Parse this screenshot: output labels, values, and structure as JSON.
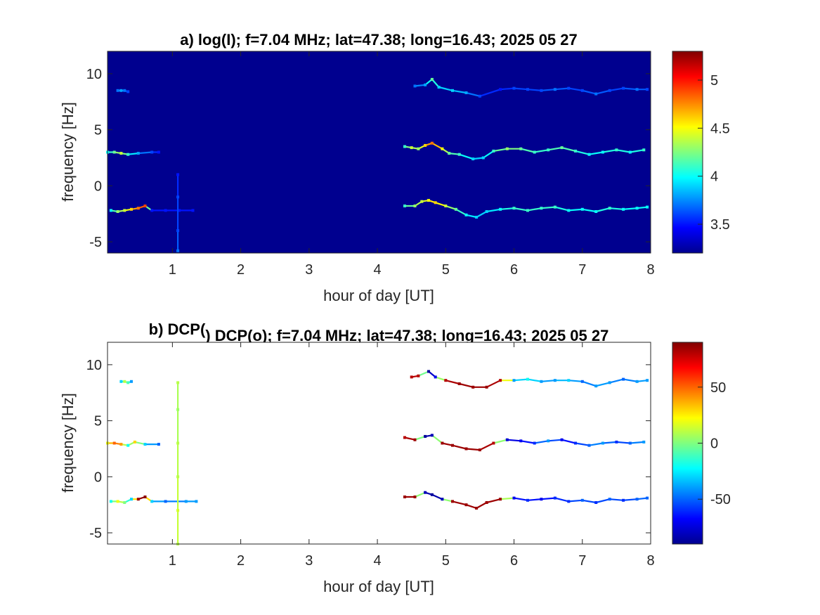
{
  "chart_data": [
    {
      "type": "heatmap",
      "title": "a) log(I); f=7.04 MHz;  lat=47.38; long=16.43; 2025 05 27",
      "xlabel": "hour of day [UT]",
      "ylabel": "frequency [Hz]",
      "xlim": [
        0.05,
        8
      ],
      "ylim": [
        -6,
        12
      ],
      "xticks": [
        1,
        2,
        3,
        4,
        5,
        6,
        7,
        8
      ],
      "yticks": [
        10,
        5,
        0,
        -5
      ],
      "colorbar": {
        "range": [
          3.2,
          5.3
        ],
        "ticks": [
          5,
          4.5,
          4,
          3.5
        ],
        "colormap": "jet"
      },
      "background_value": 3.25,
      "series": [
        {
          "points": [
            [
              0.2,
              8.5,
              3.7
            ],
            [
              0.25,
              8.5,
              3.8
            ],
            [
              0.3,
              8.5,
              3.7
            ],
            [
              0.35,
              8.4,
              3.6
            ],
            [
              4.55,
              8.9,
              3.7
            ],
            [
              4.7,
              9.0,
              3.8
            ],
            [
              4.8,
              9.5,
              4.2
            ],
            [
              4.9,
              8.8,
              3.9
            ],
            [
              5.1,
              8.5,
              3.9
            ],
            [
              5.3,
              8.3,
              3.8
            ],
            [
              5.5,
              8.0,
              3.6
            ],
            [
              5.8,
              8.6,
              3.5
            ],
            [
              6.0,
              8.7,
              3.6
            ],
            [
              6.2,
              8.6,
              3.6
            ],
            [
              6.4,
              8.5,
              3.6
            ],
            [
              6.6,
              8.6,
              3.7
            ],
            [
              6.8,
              8.7,
              3.6
            ],
            [
              7.0,
              8.5,
              3.6
            ],
            [
              7.2,
              8.2,
              3.7
            ],
            [
              7.4,
              8.5,
              3.6
            ],
            [
              7.6,
              8.7,
              3.6
            ],
            [
              7.8,
              8.6,
              3.7
            ],
            [
              7.95,
              8.6,
              3.6
            ]
          ]
        },
        {
          "points": [
            [
              0.05,
              3.0,
              4.0
            ],
            [
              0.15,
              3.0,
              4.2
            ],
            [
              0.25,
              2.9,
              4.4
            ],
            [
              0.35,
              2.8,
              4.1
            ],
            [
              0.5,
              2.9,
              3.8
            ],
            [
              0.7,
              3.0,
              3.6
            ],
            [
              0.8,
              3.0,
              3.5
            ],
            [
              4.4,
              3.5,
              4.1
            ],
            [
              4.5,
              3.4,
              4.4
            ],
            [
              4.6,
              3.3,
              4.3
            ],
            [
              4.7,
              3.6,
              4.6
            ],
            [
              4.8,
              3.8,
              4.8
            ],
            [
              4.95,
              3.3,
              4.5
            ],
            [
              5.05,
              2.9,
              4.2
            ],
            [
              5.2,
              2.8,
              4.1
            ],
            [
              5.4,
              2.4,
              3.9
            ],
            [
              5.55,
              2.5,
              3.9
            ],
            [
              5.7,
              3.1,
              4.1
            ],
            [
              5.9,
              3.3,
              4.3
            ],
            [
              6.1,
              3.3,
              4.2
            ],
            [
              6.3,
              3.0,
              4.1
            ],
            [
              6.5,
              3.2,
              4.1
            ],
            [
              6.7,
              3.4,
              4.2
            ],
            [
              6.9,
              3.1,
              4.1
            ],
            [
              7.1,
              2.8,
              4.0
            ],
            [
              7.3,
              3.0,
              4.0
            ],
            [
              7.5,
              3.2,
              4.1
            ],
            [
              7.7,
              3.0,
              4.0
            ],
            [
              7.9,
              3.2,
              4.1
            ]
          ]
        },
        {
          "points": [
            [
              0.1,
              -2.2,
              4.0
            ],
            [
              0.2,
              -2.3,
              4.3
            ],
            [
              0.3,
              -2.2,
              4.4
            ],
            [
              0.4,
              -2.1,
              4.6
            ],
            [
              0.5,
              -2.0,
              4.8
            ],
            [
              0.6,
              -1.8,
              4.9
            ],
            [
              0.7,
              -2.2,
              3.5
            ],
            [
              0.9,
              -2.2,
              3.5
            ],
            [
              1.1,
              -2.2,
              3.5
            ],
            [
              1.3,
              -2.2,
              3.5
            ],
            [
              4.4,
              -1.8,
              4.1
            ],
            [
              4.55,
              -1.8,
              4.3
            ],
            [
              4.65,
              -1.4,
              4.4
            ],
            [
              4.75,
              -1.3,
              4.5
            ],
            [
              4.85,
              -1.5,
              4.6
            ],
            [
              5.0,
              -1.8,
              4.4
            ],
            [
              5.15,
              -2.1,
              4.2
            ],
            [
              5.3,
              -2.6,
              4.0
            ],
            [
              5.45,
              -2.8,
              3.9
            ],
            [
              5.6,
              -2.3,
              3.9
            ],
            [
              5.8,
              -2.1,
              4.0
            ],
            [
              6.0,
              -2.0,
              4.1
            ],
            [
              6.2,
              -2.2,
              4.1
            ],
            [
              6.4,
              -2.0,
              4.1
            ],
            [
              6.6,
              -1.9,
              4.1
            ],
            [
              6.8,
              -2.2,
              4.0
            ],
            [
              7.0,
              -2.1,
              4.0
            ],
            [
              7.2,
              -2.3,
              4.0
            ],
            [
              7.4,
              -2.0,
              4.1
            ],
            [
              7.6,
              -2.1,
              4.0
            ],
            [
              7.8,
              -2.0,
              4.0
            ],
            [
              7.95,
              -1.9,
              4.0
            ]
          ]
        },
        {
          "points": [
            [
              1.08,
              -5.8,
              3.7
            ],
            [
              1.08,
              -4.0,
              3.6
            ],
            [
              1.08,
              -1.0,
              3.6
            ],
            [
              1.08,
              1.0,
              3.5
            ]
          ]
        }
      ]
    },
    {
      "type": "heatmap",
      "title": "b) DCP(o); f=7.04 MHz;  lat=47.38; long=16.43; 2025 05 27",
      "xlabel": "hour of day [UT]",
      "ylabel": "frequency [Hz]",
      "xlim": [
        0.05,
        8
      ],
      "ylim": [
        -6,
        12
      ],
      "xticks": [
        1,
        2,
        3,
        4,
        5,
        6,
        7,
        8
      ],
      "yticks": [
        10,
        5,
        0,
        -5
      ],
      "colorbar": {
        "range": [
          -90,
          90
        ],
        "ticks": [
          50,
          0,
          -50
        ],
        "colormap": "jet"
      },
      "series": [
        {
          "points": [
            [
              0.25,
              8.5,
              -30
            ],
            [
              0.3,
              8.5,
              10
            ],
            [
              0.35,
              8.4,
              -10
            ],
            [
              0.4,
              8.5,
              -40
            ],
            [
              4.5,
              8.9,
              80
            ],
            [
              4.6,
              9.0,
              80
            ],
            [
              4.75,
              9.4,
              -85
            ],
            [
              4.85,
              8.9,
              -70
            ],
            [
              5.0,
              8.6,
              80
            ],
            [
              5.2,
              8.3,
              85
            ],
            [
              5.4,
              8.0,
              85
            ],
            [
              5.6,
              8.0,
              85
            ],
            [
              5.8,
              8.6,
              80
            ],
            [
              6.0,
              8.6,
              -40
            ],
            [
              6.2,
              8.7,
              -20
            ],
            [
              6.4,
              8.5,
              -40
            ],
            [
              6.6,
              8.6,
              -40
            ],
            [
              6.8,
              8.6,
              -30
            ],
            [
              7.0,
              8.5,
              -50
            ],
            [
              7.2,
              8.1,
              -40
            ],
            [
              7.4,
              8.4,
              -40
            ],
            [
              7.6,
              8.7,
              -50
            ],
            [
              7.8,
              8.5,
              -40
            ],
            [
              7.95,
              8.6,
              -40
            ]
          ]
        },
        {
          "points": [
            [
              0.05,
              3.0,
              20
            ],
            [
              0.15,
              3.0,
              50
            ],
            [
              0.25,
              2.9,
              40
            ],
            [
              0.35,
              2.8,
              -20
            ],
            [
              0.45,
              3.1,
              30
            ],
            [
              0.6,
              2.9,
              -30
            ],
            [
              0.8,
              2.9,
              -50
            ],
            [
              4.4,
              3.5,
              80
            ],
            [
              4.55,
              3.3,
              85
            ],
            [
              4.7,
              3.6,
              -85
            ],
            [
              4.8,
              3.7,
              -80
            ],
            [
              4.95,
              3.0,
              85
            ],
            [
              5.1,
              2.8,
              85
            ],
            [
              5.3,
              2.5,
              85
            ],
            [
              5.5,
              2.4,
              85
            ],
            [
              5.7,
              3.0,
              80
            ],
            [
              5.9,
              3.3,
              -75
            ],
            [
              6.1,
              3.2,
              -70
            ],
            [
              6.3,
              3.0,
              -60
            ],
            [
              6.5,
              3.2,
              -40
            ],
            [
              6.7,
              3.3,
              -70
            ],
            [
              6.9,
              3.0,
              -60
            ],
            [
              7.1,
              2.8,
              -50
            ],
            [
              7.3,
              3.0,
              -40
            ],
            [
              7.5,
              3.1,
              -60
            ],
            [
              7.7,
              3.0,
              -50
            ],
            [
              7.9,
              3.1,
              -40
            ]
          ]
        },
        {
          "points": [
            [
              0.1,
              -2.2,
              -20
            ],
            [
              0.2,
              -2.2,
              20
            ],
            [
              0.3,
              -2.3,
              0
            ],
            [
              0.4,
              -2.0,
              -30
            ],
            [
              0.5,
              -2.0,
              85
            ],
            [
              0.6,
              -1.8,
              88
            ],
            [
              0.7,
              -2.2,
              -30
            ],
            [
              0.9,
              -2.2,
              -50
            ],
            [
              1.2,
              -2.2,
              -40
            ],
            [
              1.35,
              -2.2,
              -40
            ],
            [
              4.4,
              -1.8,
              85
            ],
            [
              4.55,
              -1.8,
              85
            ],
            [
              4.7,
              -1.4,
              -80
            ],
            [
              4.8,
              -1.6,
              -85
            ],
            [
              4.95,
              -2.0,
              -80
            ],
            [
              5.1,
              -2.2,
              85
            ],
            [
              5.3,
              -2.5,
              85
            ],
            [
              5.45,
              -2.8,
              85
            ],
            [
              5.6,
              -2.3,
              85
            ],
            [
              5.8,
              -2.0,
              85
            ],
            [
              6.0,
              -1.9,
              -70
            ],
            [
              6.2,
              -2.1,
              -60
            ],
            [
              6.4,
              -2.0,
              -70
            ],
            [
              6.6,
              -1.9,
              -60
            ],
            [
              6.8,
              -2.2,
              -60
            ],
            [
              7.0,
              -2.1,
              -50
            ],
            [
              7.2,
              -2.3,
              -60
            ],
            [
              7.4,
              -2.0,
              -50
            ],
            [
              7.6,
              -2.1,
              -60
            ],
            [
              7.8,
              -2.0,
              -50
            ],
            [
              7.95,
              -1.9,
              -50
            ]
          ]
        },
        {
          "points": [
            [
              1.08,
              -6.0,
              10
            ],
            [
              1.08,
              -3.0,
              15
            ],
            [
              1.08,
              0.0,
              10
            ],
            [
              1.08,
              3.0,
              10
            ],
            [
              1.08,
              6.0,
              5
            ],
            [
              1.08,
              8.4,
              10
            ]
          ]
        }
      ]
    }
  ]
}
